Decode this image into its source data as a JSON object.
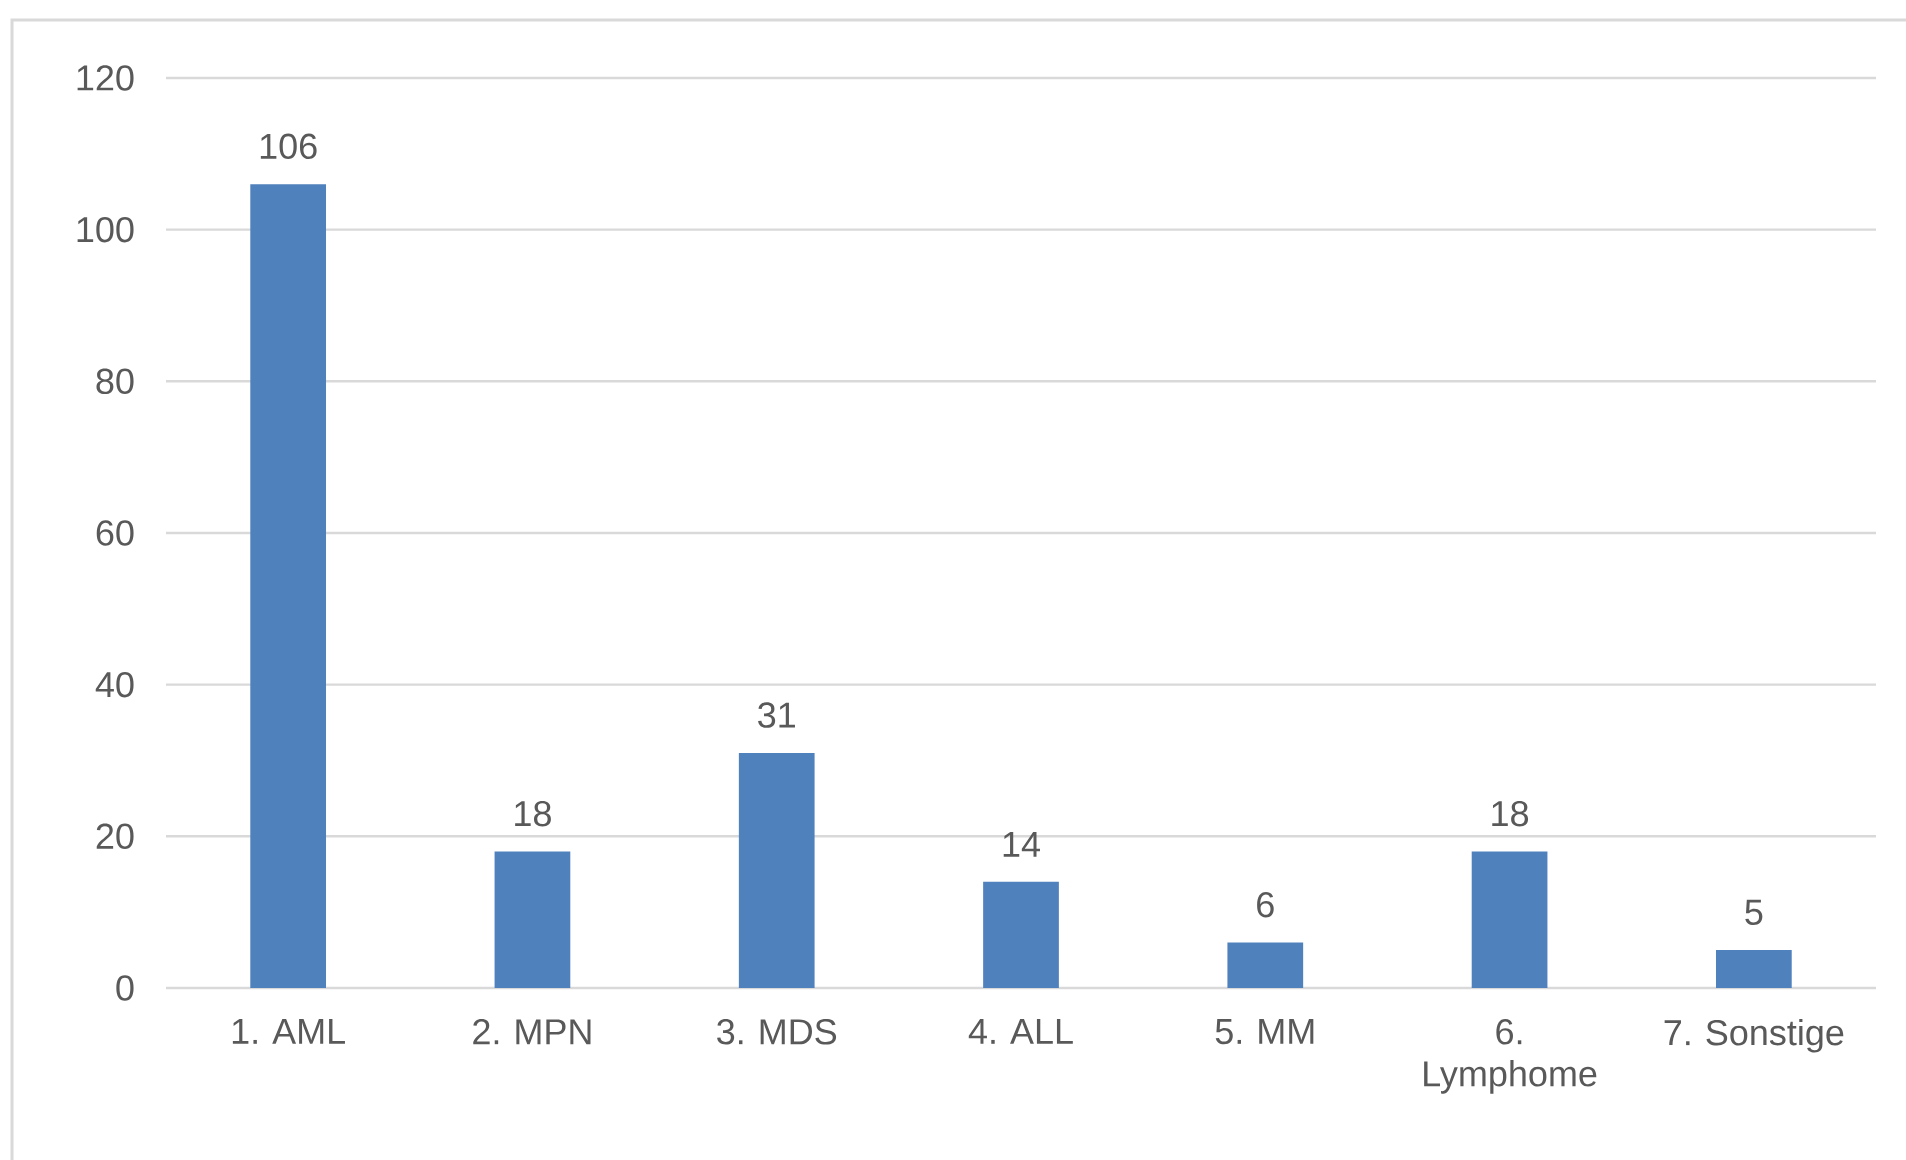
{
  "chart_data": {
    "type": "bar",
    "categories": [
      "1. AML",
      "2. MPN",
      "3. MDS",
      "4. ALL",
      "5. MM",
      "6. Lymphome",
      "7. Sonstige"
    ],
    "values": [
      106,
      18,
      31,
      14,
      6,
      18,
      5
    ],
    "color": "#4f81bd",
    "ylim": [
      0,
      120
    ],
    "yticks": [
      0,
      20,
      40,
      60,
      80,
      100,
      120
    ],
    "grid": "y",
    "data_labels": true
  }
}
